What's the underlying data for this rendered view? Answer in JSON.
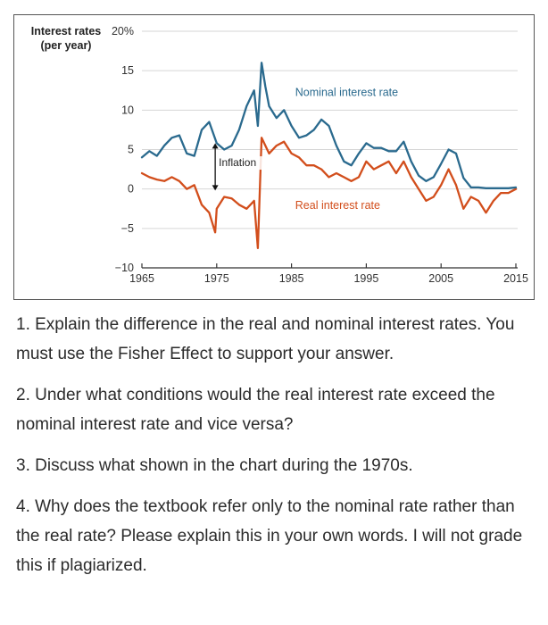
{
  "chart_data": {
    "type": "line",
    "ylabel_line1": "Interest rates",
    "ylabel_line2": "(per year)",
    "ylim": [
      -10,
      20
    ],
    "xlim": [
      1965,
      2015
    ],
    "y_ticks": [
      -10,
      -5,
      0,
      5,
      10,
      15,
      20
    ],
    "y_tick_labels": [
      "−10",
      "−5",
      "0",
      "5",
      "10",
      "15",
      "20%"
    ],
    "x_ticks": [
      1965,
      1975,
      1985,
      1995,
      2005,
      2015
    ],
    "x_tick_labels": [
      "1965",
      "1975",
      "1985",
      "1995",
      "2005",
      "2015"
    ],
    "grid": true,
    "series": [
      {
        "name": "Nominal interest rate",
        "color": "#2a6a8e",
        "x": [
          1965,
          1966,
          1967,
          1968,
          1969,
          1970,
          1971,
          1972,
          1973,
          1974,
          1975,
          1976,
          1977,
          1978,
          1979,
          1980,
          1980.5,
          1981,
          1981.5,
          1982,
          1983,
          1984,
          1985,
          1986,
          1987,
          1988,
          1989,
          1990,
          1991,
          1992,
          1993,
          1994,
          1995,
          1996,
          1997,
          1998,
          1999,
          2000,
          2001,
          2002,
          2003,
          2004,
          2005,
          2006,
          2007,
          2008,
          2009,
          2010,
          2011,
          2012,
          2013,
          2014,
          2015
        ],
        "values": [
          4,
          4.8,
          4.2,
          5.5,
          6.5,
          6.8,
          4.5,
          4.2,
          7.5,
          8.5,
          5.8,
          5.0,
          5.5,
          7.5,
          10.5,
          12.5,
          8.0,
          16.0,
          13.0,
          10.5,
          9.0,
          10.0,
          8.0,
          6.5,
          6.8,
          7.5,
          8.8,
          8.0,
          5.5,
          3.5,
          3.0,
          4.5,
          5.8,
          5.2,
          5.2,
          4.8,
          4.8,
          6.0,
          3.5,
          1.7,
          1.0,
          1.5,
          3.2,
          5.0,
          4.5,
          1.4,
          0.2,
          0.2,
          0.1,
          0.1,
          0.1,
          0.1,
          0.2
        ]
      },
      {
        "name": "Real interest rate",
        "color": "#d24e1c",
        "x": [
          1965,
          1966,
          1967,
          1968,
          1969,
          1970,
          1971,
          1972,
          1973,
          1974,
          1974.8,
          1975,
          1976,
          1977,
          1978,
          1979,
          1980,
          1980.5,
          1981,
          1982,
          1983,
          1984,
          1985,
          1986,
          1987,
          1988,
          1989,
          1990,
          1991,
          1992,
          1993,
          1994,
          1995,
          1996,
          1997,
          1998,
          1999,
          2000,
          2001,
          2002,
          2003,
          2004,
          2005,
          2006,
          2007,
          2008,
          2009,
          2010,
          2011,
          2012,
          2013,
          2014,
          2015
        ],
        "values": [
          2.0,
          1.5,
          1.2,
          1.0,
          1.5,
          1.0,
          0,
          0.5,
          -2.0,
          -3.0,
          -5.5,
          -2.5,
          -1.0,
          -1.2,
          -2.0,
          -2.5,
          -1.5,
          -7.5,
          6.5,
          4.5,
          5.5,
          6.0,
          4.5,
          4.0,
          3.0,
          3.0,
          2.5,
          1.5,
          2.0,
          1.5,
          1.0,
          1.5,
          3.5,
          2.5,
          3.0,
          3.5,
          2.0,
          3.5,
          1.5,
          0,
          -1.5,
          -1.0,
          0.5,
          2.5,
          0.5,
          -2.5,
          -1.0,
          -1.5,
          -3.0,
          -1.5,
          -0.5,
          -0.5,
          0.0
        ]
      }
    ],
    "annotations": {
      "nominal_label": "Nominal interest rate",
      "real_label": "Real interest rate",
      "inflation_label": "Inflation",
      "inflation_arrow_year": 1974.8,
      "inflation_arrow_from": 5.8,
      "inflation_arrow_to": -0.2
    }
  },
  "questions": [
    "1.  Explain the difference in the real and nominal interest rates. You must use the Fisher Effect to support your answer.",
    "2.  Under what conditions would the real interest rate exceed the nominal interest rate and vice versa?",
    "3.  Discuss what shown in the chart during the 1970s.",
    "4.  Why does the textbook refer only to the nominal rate rather than the real rate?  Please explain this in your own words.  I will not grade this if plagiarized."
  ]
}
